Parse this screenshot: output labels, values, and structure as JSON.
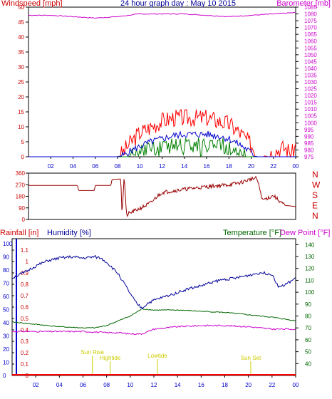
{
  "colors": {
    "background": "#ffffff",
    "frame": "#000000",
    "wind": "#ff0000",
    "gust_bar": "#ff0000",
    "wind_avg": "#0000cc",
    "wind_green": "#008000",
    "barometer": "#cc00cc",
    "direction": "#990000",
    "rain": "#ff0000",
    "humidity": "#000099",
    "temperature": "#006600",
    "dewpoint": "#cc00cc",
    "sun_marks": "#cccc00",
    "compass": "#cc0000",
    "axis_left_bottom": "#0000cc"
  },
  "chart_data": [
    {
      "type": "line",
      "title": "24 hour graph day : May 10 2015",
      "xlabel": "",
      "ylabel_left": "Windspeed [mph]",
      "ylabel_right": "Barometer [mb]",
      "x_ticks": [
        "02",
        "04",
        "06",
        "08",
        "10",
        "12",
        "14",
        "16",
        "18",
        "20",
        "22",
        "00"
      ],
      "ylim_left": [
        0,
        50
      ],
      "yticks_left": [
        0,
        5,
        10,
        15,
        20,
        25,
        30,
        35,
        40,
        45,
        50
      ],
      "ylim_right": [
        975,
        1085
      ],
      "yticks_right": [
        975,
        980,
        985,
        990,
        995,
        1000,
        1005,
        1010,
        1015,
        1020,
        1025,
        1030,
        1035,
        1040,
        1045,
        1050,
        1055,
        1060,
        1065,
        1070,
        1075,
        1080,
        1085
      ],
      "yticks_right_labels": [
        975,
        980,
        985,
        990,
        995,
        1000,
        1005,
        1010,
        1015,
        1020,
        1025,
        1030,
        1035,
        1040,
        1045,
        1050,
        1055,
        1060,
        1065,
        1070,
        1075,
        1080,
        1085
      ],
      "series": [
        {
          "key": "wind_gust",
          "axis": "left",
          "x": [
            0,
            2,
            4,
            6,
            8,
            8.4,
            9,
            10,
            11,
            12,
            13,
            14,
            15,
            16,
            17,
            18,
            19,
            20,
            20.5,
            21.5,
            22,
            23,
            23.8,
            24
          ],
          "y": [
            0,
            0,
            0,
            0,
            0,
            1,
            4,
            8,
            10,
            12,
            13,
            13,
            13,
            13,
            12,
            11,
            8,
            4,
            1,
            0,
            2,
            3,
            1,
            4
          ]
        },
        {
          "key": "wind_avg",
          "axis": "left",
          "x": [
            0,
            8,
            8.5,
            9,
            10,
            11,
            12,
            13,
            14,
            15,
            16,
            17,
            18,
            19,
            20,
            20.5,
            24
          ],
          "y": [
            0,
            0,
            0.5,
            1.5,
            3.5,
            5,
            6,
            7,
            7.5,
            7.5,
            7.5,
            7,
            6,
            4,
            1.5,
            0,
            0
          ]
        },
        {
          "key": "wind_low",
          "axis": "left",
          "x": [
            0,
            9,
            9.5,
            10,
            11,
            12,
            13,
            14,
            15,
            16,
            17,
            18,
            19,
            19.5,
            24
          ],
          "y": [
            0,
            0,
            1,
            2,
            3,
            3.5,
            4,
            4.5,
            4.5,
            4.5,
            4,
            3.5,
            2,
            0,
            0
          ]
        },
        {
          "key": "barometer",
          "axis": "right",
          "x": [
            0,
            2,
            4,
            6,
            8,
            10,
            12,
            14,
            16,
            18,
            20,
            22,
            24
          ],
          "y": [
            1079,
            1079,
            1078,
            1077,
            1078,
            1080,
            1080,
            1080,
            1079,
            1078,
            1079,
            1080,
            1081
          ]
        }
      ]
    },
    {
      "type": "line",
      "xlabel": "",
      "ylabel_left": "",
      "ylim": [
        0,
        360
      ],
      "yticks": [
        0,
        90,
        180,
        270,
        360
      ],
      "compass_labels": [
        "N",
        "W",
        "S",
        "E",
        "N"
      ],
      "series": [
        {
          "key": "wind_direction",
          "x": [
            0,
            4.4,
            4.5,
            5.9,
            6,
            7.4,
            7.5,
            8.3,
            8.4,
            8.6,
            8.8,
            9,
            10,
            11,
            11.5,
            12,
            14,
            16,
            18,
            19,
            20,
            20.5,
            20.8,
            21,
            22,
            23,
            24
          ],
          "y": [
            265,
            265,
            225,
            225,
            265,
            265,
            310,
            315,
            35,
            345,
            25,
            45,
            85,
            130,
            175,
            210,
            235,
            255,
            270,
            285,
            315,
            320,
            230,
            150,
            185,
            110,
            100
          ]
        }
      ]
    },
    {
      "type": "line",
      "xlabel": "",
      "ylabel_left": "Rainfall [in]",
      "ylabel_humidity": "Humidity [%]",
      "ylabel_right": "Temperature [°F]",
      "ylabel_right2": "Dew Point [°F]",
      "x_ticks": [
        "02",
        "04",
        "06",
        "08",
        "10",
        "12",
        "14",
        "16",
        "18",
        "20",
        "22",
        "00"
      ],
      "ylim_rain": [
        0,
        1.2
      ],
      "yticks_rain": [
        0,
        0.1,
        0.2,
        0.3,
        0.4,
        0.5,
        0.6,
        0.7,
        0.8,
        0.9,
        1,
        1.1
      ],
      "yticks_rain_labels": [
        "0",
        "0.1",
        "0.2",
        "0.3",
        "0.4",
        "0.5",
        "0.6",
        "0.7",
        "0.8",
        "0.9",
        "1",
        "1.1"
      ],
      "ylim_humidity": [
        0,
        100
      ],
      "yticks_humidity": [
        0,
        10,
        20,
        30,
        40,
        50,
        60,
        70,
        80,
        90,
        100
      ],
      "ylim_temp": [
        30,
        145
      ],
      "yticks_temp": [
        40,
        50,
        60,
        70,
        80,
        90,
        100,
        110,
        120,
        130,
        140
      ],
      "series": [
        {
          "key": "rainfall",
          "axis": "rain",
          "x": [
            0,
            24
          ],
          "y": [
            0,
            0
          ]
        },
        {
          "key": "humidity",
          "axis": "humidity",
          "x": [
            0,
            1,
            2,
            3,
            4,
            5,
            6,
            7,
            7.5,
            8,
            9,
            10,
            10.5,
            11,
            11.5,
            12,
            13,
            14,
            15,
            16,
            17,
            18,
            19,
            20,
            21,
            22,
            22.5,
            23,
            24
          ],
          "y": [
            74,
            78,
            83,
            87,
            89,
            90,
            89,
            90,
            89,
            86,
            77,
            62,
            55,
            51,
            55,
            57,
            60,
            63,
            66,
            68,
            71,
            73,
            74,
            76,
            78,
            77,
            68,
            68,
            74
          ]
        },
        {
          "key": "temperature",
          "axis": "temp",
          "x": [
            0,
            2,
            4,
            6,
            7,
            8,
            9,
            10,
            11,
            12,
            14,
            16,
            18,
            20,
            22,
            24
          ],
          "y": [
            75,
            73,
            71,
            70,
            70,
            72,
            76,
            80,
            86,
            85,
            85,
            84,
            83,
            81,
            79,
            76
          ]
        },
        {
          "key": "dewpoint",
          "axis": "temp",
          "x": [
            0,
            2,
            4,
            6,
            8,
            9,
            10,
            11,
            12,
            14,
            16,
            18,
            20,
            22,
            24
          ],
          "y": [
            67,
            67,
            67,
            67,
            66,
            66,
            65,
            65,
            69,
            71,
            72,
            72,
            71,
            69,
            69
          ]
        }
      ],
      "annotations": [
        {
          "text": "Sun Rise",
          "x": 6.8
        },
        {
          "text": "Hightide",
          "x": 8.3
        },
        {
          "text": "Lowtide",
          "x": 12.3
        },
        {
          "text": "Sun Set",
          "x": 20.2
        }
      ]
    }
  ]
}
